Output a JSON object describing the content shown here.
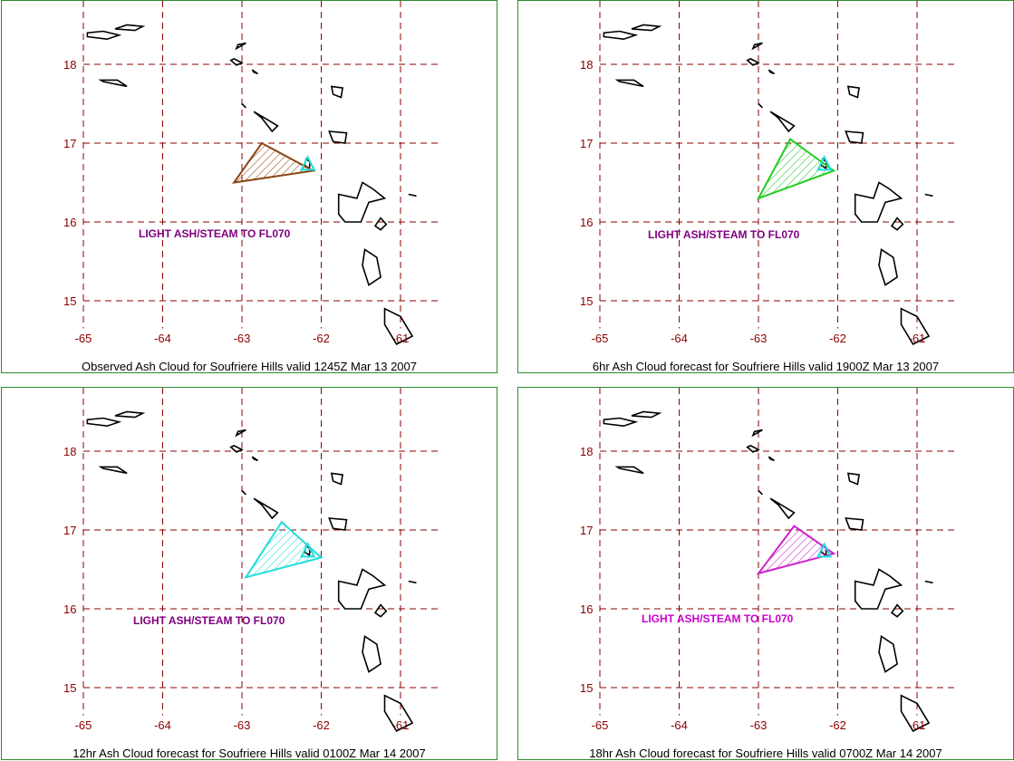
{
  "axes": {
    "lat_labels": [
      "18",
      "17",
      "16",
      "15"
    ],
    "lon_labels": [
      "-65",
      "-64",
      "-63",
      "-62",
      "-61"
    ],
    "lat_values": [
      18,
      17,
      16,
      15
    ],
    "lon_values": [
      -65,
      -64,
      -63,
      -62,
      -61
    ],
    "label_color": "#8b0000",
    "grid_color": "#8b0000"
  },
  "panels": [
    {
      "caption": "Observed Ash Cloud for Soufriere  Hills valid 1245Z Mar 13 2007",
      "annotation": "LIGHT ASH/STEAM TO FL070",
      "annotation_color": "#800080",
      "cloud_color": "#8b4513",
      "cloud_polygon": [
        [
          -62.75,
          17.0
        ],
        [
          -62.1,
          16.65
        ],
        [
          -63.1,
          16.5
        ]
      ]
    },
    {
      "caption": "6hr Ash Cloud forecast for Soufriere  Hills valid 1900Z Mar 13 2007",
      "annotation": "LIGHT ASH/STEAM TO FL070",
      "annotation_color": "#800080",
      "cloud_color": "#22cc22",
      "cloud_polygon": [
        [
          -62.6,
          17.05
        ],
        [
          -62.05,
          16.65
        ],
        [
          -63.0,
          16.3
        ]
      ]
    },
    {
      "caption": "12hr Ash Cloud forecast for Soufriere  Hills valid 0100Z Mar 14 2007",
      "annotation": "LIGHT ASH/STEAM TO FL070",
      "annotation_color": "#800080",
      "cloud_color": "#22dddd",
      "cloud_polygon": [
        [
          -62.5,
          17.1
        ],
        [
          -62.0,
          16.65
        ],
        [
          -62.95,
          16.4
        ]
      ]
    },
    {
      "caption": "18hr Ash Cloud forecast for Soufriere  Hills valid 0700Z Mar 14 2007",
      "annotation": "LIGHT ASH/STEAM TO FL070",
      "annotation_color": "#cc00cc",
      "cloud_color": "#cc22cc",
      "cloud_polygon": [
        [
          -62.55,
          17.05
        ],
        [
          -62.05,
          16.7
        ],
        [
          -63.0,
          16.45
        ]
      ]
    }
  ],
  "volcano_marker_color": "#22dddd",
  "coast_color": "#000000"
}
